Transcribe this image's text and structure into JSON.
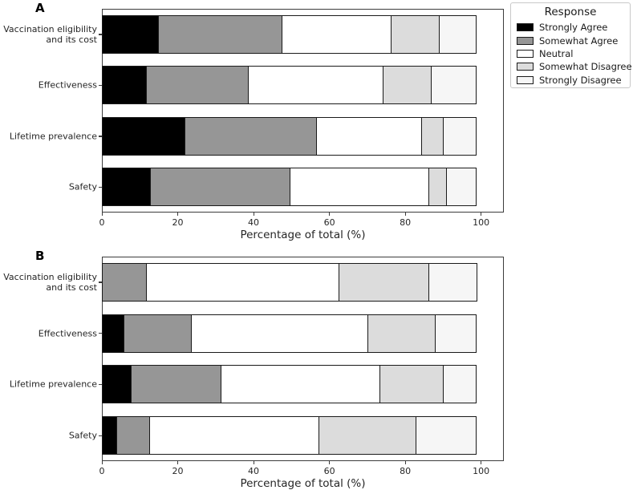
{
  "figure": {
    "background": "#ffffff",
    "edge_color": "#1a1a1a",
    "legend": {
      "title": "Response",
      "items": [
        {
          "label": "Strongly Agree",
          "color": "#000000"
        },
        {
          "label": "Somewhat Agree",
          "color": "#969696"
        },
        {
          "label": "Neutral",
          "color": "#ffffff"
        },
        {
          "label": "Somewhat Disagree",
          "color": "#dcdcdc"
        },
        {
          "label": "Strongly Disagree",
          "color": "#f6f6f6"
        }
      ]
    }
  },
  "chart_data": [
    {
      "type": "bar",
      "panel_label": "A",
      "orientation": "horizontal",
      "stacked": true,
      "grid": false,
      "legend_position": "outside-top-right",
      "categories": [
        "Vaccination eligibility\nand its cost",
        "Effectiveness",
        "Lifetime prevalence",
        "Safety"
      ],
      "series": [
        {
          "name": "Strongly Agree",
          "color": "#000000",
          "values": [
            15,
            12,
            22,
            13
          ]
        },
        {
          "name": "Somewhat Agree",
          "color": "#969696",
          "values": [
            33,
            27,
            35,
            37
          ]
        },
        {
          "name": "Neutral",
          "color": "#ffffff",
          "values": [
            29,
            36,
            28,
            37
          ]
        },
        {
          "name": "Somewhat Disagree",
          "color": "#dcdcdc",
          "values": [
            13,
            13,
            6,
            5
          ]
        },
        {
          "name": "Strongly Disagree",
          "color": "#f6f6f6",
          "values": [
            10,
            12,
            9,
            8
          ]
        }
      ],
      "xlabel": "Percentage of total (%)",
      "xticks": [
        0,
        20,
        40,
        60,
        80,
        100
      ],
      "xlim": [
        0,
        106
      ]
    },
    {
      "type": "bar",
      "panel_label": "B",
      "orientation": "horizontal",
      "stacked": true,
      "grid": false,
      "legend_position": "none",
      "categories": [
        "Vaccination eligibility\nand its cost",
        "Effectiveness",
        "Lifetime prevalence",
        "Safety"
      ],
      "series": [
        {
          "name": "Strongly Agree",
          "color": "#000000",
          "values": [
            0,
            6,
            8,
            4
          ]
        },
        {
          "name": "Somewhat Agree",
          "color": "#969696",
          "values": [
            12,
            18,
            24,
            9
          ]
        },
        {
          "name": "Neutral",
          "color": "#ffffff",
          "values": [
            51,
            47,
            42,
            45
          ]
        },
        {
          "name": "Somewhat Disagree",
          "color": "#dcdcdc",
          "values": [
            24,
            18,
            17,
            26
          ]
        },
        {
          "name": "Strongly Disagree",
          "color": "#f6f6f6",
          "values": [
            13,
            11,
            9,
            16
          ]
        }
      ],
      "xlabel": "Percentage of total (%)",
      "xticks": [
        0,
        20,
        40,
        60,
        80,
        100
      ],
      "xlim": [
        0,
        106
      ]
    }
  ]
}
